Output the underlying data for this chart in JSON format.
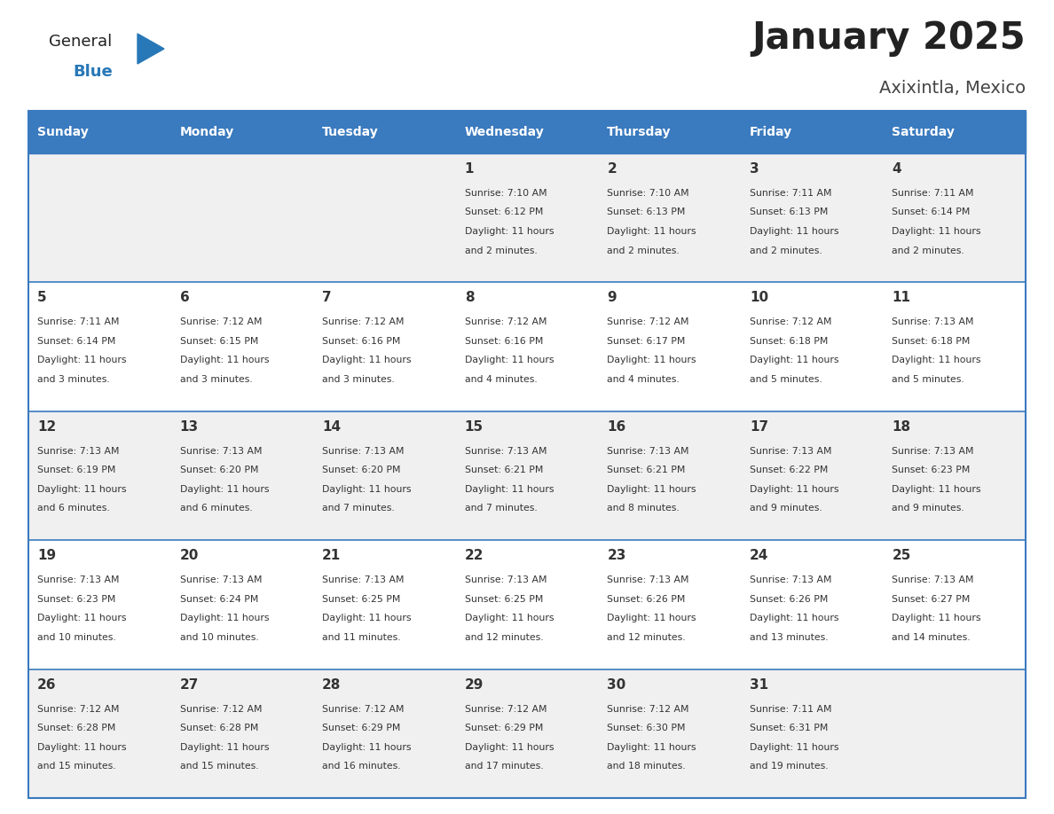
{
  "title": "January 2025",
  "subtitle": "Axixintla, Mexico",
  "days_of_week": [
    "Sunday",
    "Monday",
    "Tuesday",
    "Wednesday",
    "Thursday",
    "Friday",
    "Saturday"
  ],
  "header_bg": "#3a7abf",
  "header_text": "#ffffff",
  "row_bg_odd": "#f0f0f0",
  "row_bg_even": "#ffffff",
  "cell_text": "#333333",
  "day_num_color": "#333333",
  "divider_color": "#3a7abf",
  "calendar_data": [
    [
      {
        "day": "",
        "sunrise": "",
        "sunset": "",
        "daylight": ""
      },
      {
        "day": "",
        "sunrise": "",
        "sunset": "",
        "daylight": ""
      },
      {
        "day": "",
        "sunrise": "",
        "sunset": "",
        "daylight": ""
      },
      {
        "day": "1",
        "sunrise": "7:10 AM",
        "sunset": "6:12 PM",
        "daylight": "11 hours and 2 minutes."
      },
      {
        "day": "2",
        "sunrise": "7:10 AM",
        "sunset": "6:13 PM",
        "daylight": "11 hours and 2 minutes."
      },
      {
        "day": "3",
        "sunrise": "7:11 AM",
        "sunset": "6:13 PM",
        "daylight": "11 hours and 2 minutes."
      },
      {
        "day": "4",
        "sunrise": "7:11 AM",
        "sunset": "6:14 PM",
        "daylight": "11 hours and 2 minutes."
      }
    ],
    [
      {
        "day": "5",
        "sunrise": "7:11 AM",
        "sunset": "6:14 PM",
        "daylight": "11 hours and 3 minutes."
      },
      {
        "day": "6",
        "sunrise": "7:12 AM",
        "sunset": "6:15 PM",
        "daylight": "11 hours and 3 minutes."
      },
      {
        "day": "7",
        "sunrise": "7:12 AM",
        "sunset": "6:16 PM",
        "daylight": "11 hours and 3 minutes."
      },
      {
        "day": "8",
        "sunrise": "7:12 AM",
        "sunset": "6:16 PM",
        "daylight": "11 hours and 4 minutes."
      },
      {
        "day": "9",
        "sunrise": "7:12 AM",
        "sunset": "6:17 PM",
        "daylight": "11 hours and 4 minutes."
      },
      {
        "day": "10",
        "sunrise": "7:12 AM",
        "sunset": "6:18 PM",
        "daylight": "11 hours and 5 minutes."
      },
      {
        "day": "11",
        "sunrise": "7:13 AM",
        "sunset": "6:18 PM",
        "daylight": "11 hours and 5 minutes."
      }
    ],
    [
      {
        "day": "12",
        "sunrise": "7:13 AM",
        "sunset": "6:19 PM",
        "daylight": "11 hours and 6 minutes."
      },
      {
        "day": "13",
        "sunrise": "7:13 AM",
        "sunset": "6:20 PM",
        "daylight": "11 hours and 6 minutes."
      },
      {
        "day": "14",
        "sunrise": "7:13 AM",
        "sunset": "6:20 PM",
        "daylight": "11 hours and 7 minutes."
      },
      {
        "day": "15",
        "sunrise": "7:13 AM",
        "sunset": "6:21 PM",
        "daylight": "11 hours and 7 minutes."
      },
      {
        "day": "16",
        "sunrise": "7:13 AM",
        "sunset": "6:21 PM",
        "daylight": "11 hours and 8 minutes."
      },
      {
        "day": "17",
        "sunrise": "7:13 AM",
        "sunset": "6:22 PM",
        "daylight": "11 hours and 9 minutes."
      },
      {
        "day": "18",
        "sunrise": "7:13 AM",
        "sunset": "6:23 PM",
        "daylight": "11 hours and 9 minutes."
      }
    ],
    [
      {
        "day": "19",
        "sunrise": "7:13 AM",
        "sunset": "6:23 PM",
        "daylight": "11 hours and 10 minutes."
      },
      {
        "day": "20",
        "sunrise": "7:13 AM",
        "sunset": "6:24 PM",
        "daylight": "11 hours and 10 minutes."
      },
      {
        "day": "21",
        "sunrise": "7:13 AM",
        "sunset": "6:25 PM",
        "daylight": "11 hours and 11 minutes."
      },
      {
        "day": "22",
        "sunrise": "7:13 AM",
        "sunset": "6:25 PM",
        "daylight": "11 hours and 12 minutes."
      },
      {
        "day": "23",
        "sunrise": "7:13 AM",
        "sunset": "6:26 PM",
        "daylight": "11 hours and 12 minutes."
      },
      {
        "day": "24",
        "sunrise": "7:13 AM",
        "sunset": "6:26 PM",
        "daylight": "11 hours and 13 minutes."
      },
      {
        "day": "25",
        "sunrise": "7:13 AM",
        "sunset": "6:27 PM",
        "daylight": "11 hours and 14 minutes."
      }
    ],
    [
      {
        "day": "26",
        "sunrise": "7:12 AM",
        "sunset": "6:28 PM",
        "daylight": "11 hours and 15 minutes."
      },
      {
        "day": "27",
        "sunrise": "7:12 AM",
        "sunset": "6:28 PM",
        "daylight": "11 hours and 15 minutes."
      },
      {
        "day": "28",
        "sunrise": "7:12 AM",
        "sunset": "6:29 PM",
        "daylight": "11 hours and 16 minutes."
      },
      {
        "day": "29",
        "sunrise": "7:12 AM",
        "sunset": "6:29 PM",
        "daylight": "11 hours and 17 minutes."
      },
      {
        "day": "30",
        "sunrise": "7:12 AM",
        "sunset": "6:30 PM",
        "daylight": "11 hours and 18 minutes."
      },
      {
        "day": "31",
        "sunrise": "7:11 AM",
        "sunset": "6:31 PM",
        "daylight": "11 hours and 19 minutes."
      },
      {
        "day": "",
        "sunrise": "",
        "sunset": "",
        "daylight": ""
      }
    ]
  ],
  "logo_color_general": "#222222",
  "logo_color_blue": "#2878b8",
  "logo_triangle_color": "#2878b8"
}
